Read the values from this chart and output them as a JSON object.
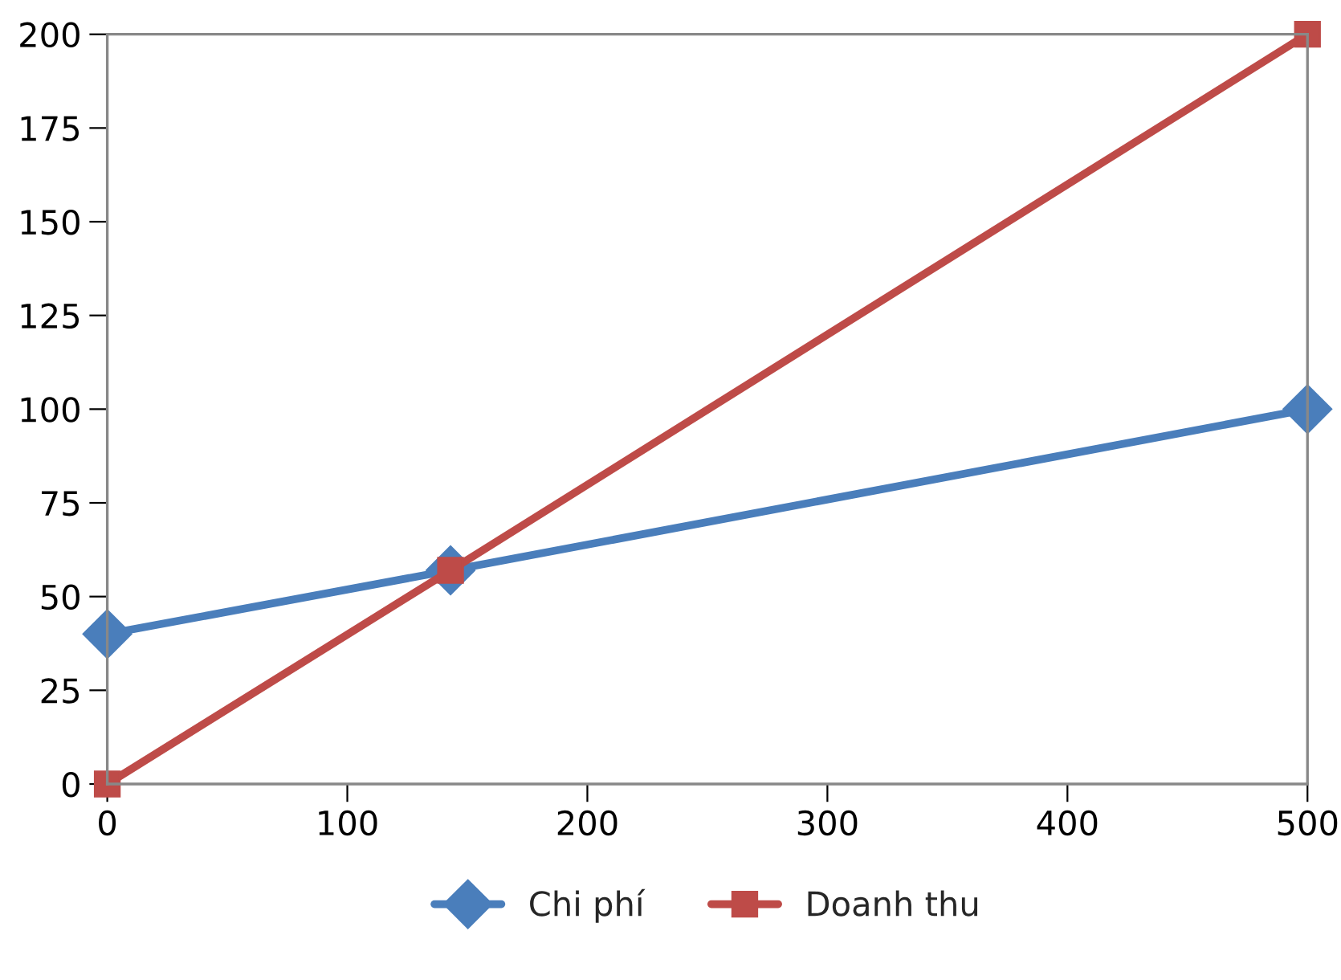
{
  "chart_data": {
    "type": "line",
    "x": [
      0,
      143,
      500
    ],
    "series": [
      {
        "name": "Chi phí",
        "color": "#4a7ebb",
        "values": [
          40,
          57,
          100
        ],
        "marker": "diamond"
      },
      {
        "name": "Doanh thu",
        "color": "#be4b48",
        "values": [
          0,
          57,
          200
        ],
        "marker": "square"
      }
    ],
    "xlim": [
      0,
      500
    ],
    "xticks": [
      0,
      100,
      200,
      300,
      400,
      500
    ],
    "ylim": [
      0,
      200
    ],
    "yticks": [
      0,
      25,
      50,
      75,
      100,
      125,
      150,
      175,
      200
    ],
    "grid": false,
    "legend": "bottom",
    "line_style": "solid"
  }
}
